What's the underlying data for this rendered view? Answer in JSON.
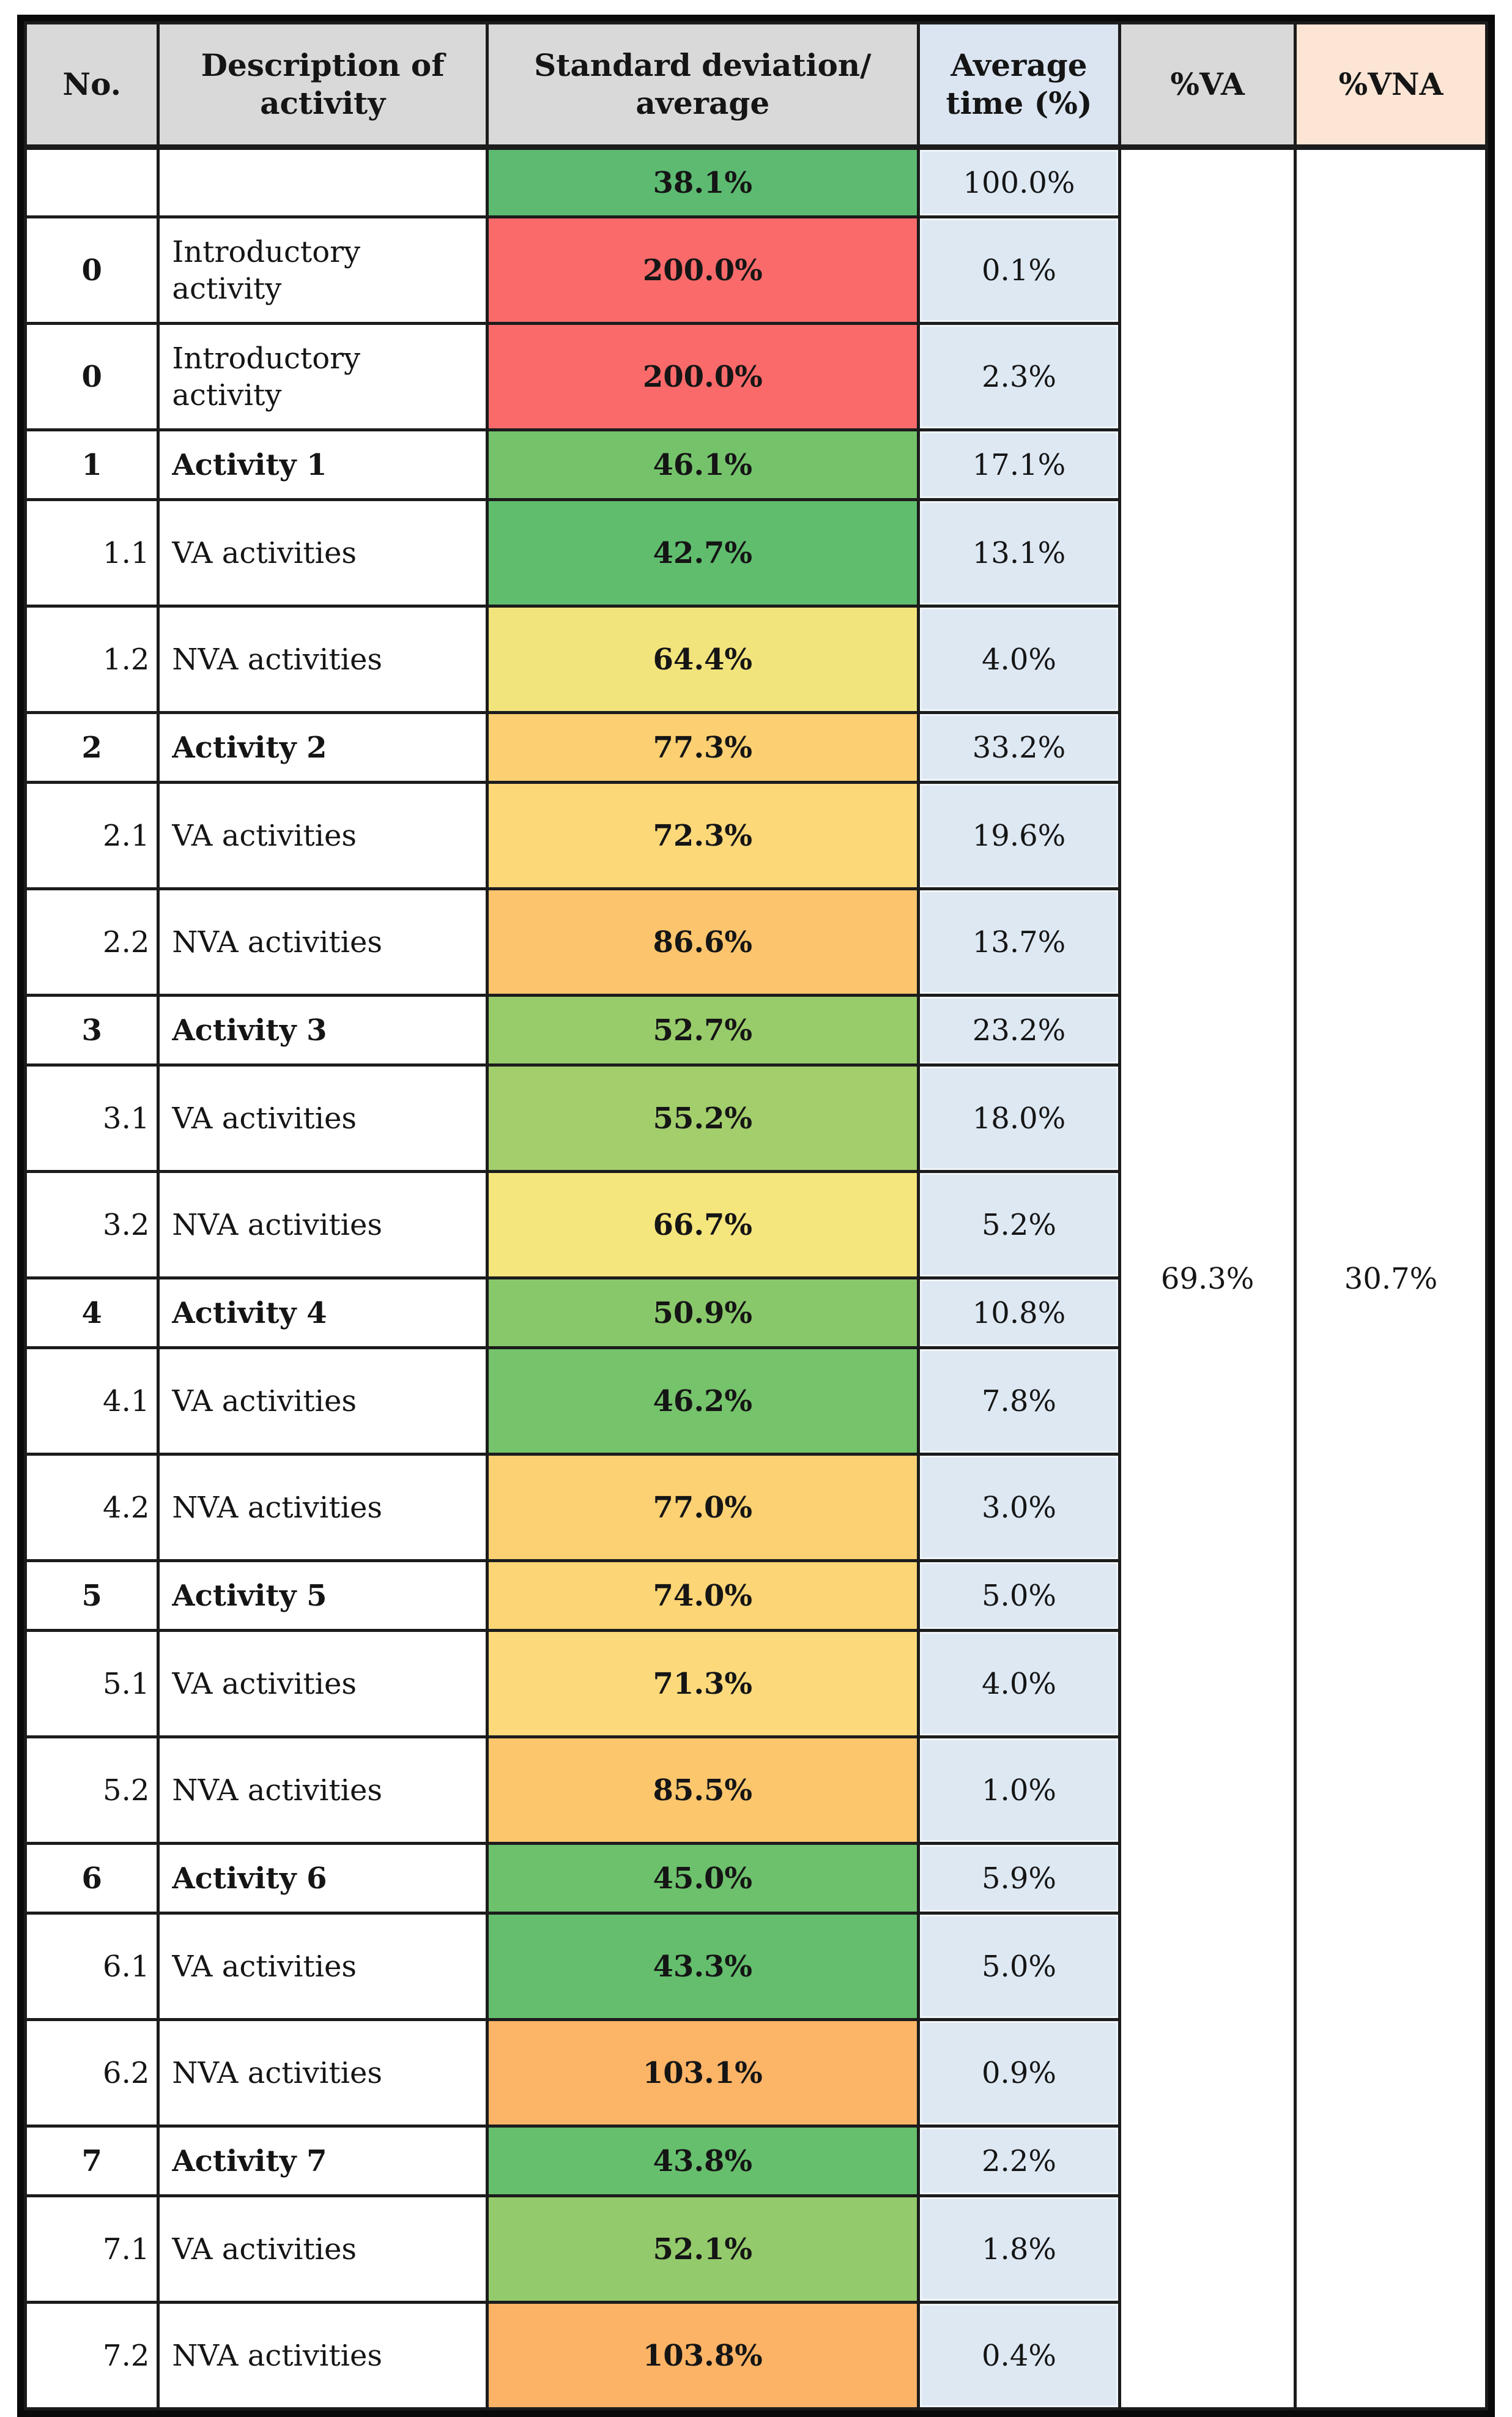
{
  "chart_data": {
    "type": "table",
    "columns": [
      "No.",
      "Description of activity",
      "Standard deviation/ average",
      "Average time (%)",
      "%VA",
      "%VNA"
    ],
    "va_total": "69.3%",
    "vna_total": "30.7%",
    "rows": [
      {
        "no": "",
        "description": "",
        "std": "38.1%",
        "std_color": "#5cbb71",
        "avg": "100.0%",
        "level": "summary"
      },
      {
        "no": "0",
        "description": "Introductory activity",
        "std": "200.0%",
        "std_color": "#fa6a6a",
        "avg": "0.1%",
        "level": "intro"
      },
      {
        "no": "0",
        "description": "Introductory activity",
        "std": "200.0%",
        "std_color": "#fa6a6a",
        "avg": "2.3%",
        "level": "intro"
      },
      {
        "no": "1",
        "description": "Activity 1",
        "std": "46.1%",
        "std_color": "#74c36b",
        "avg": "17.1%",
        "level": "parent"
      },
      {
        "no": "1.1",
        "description": "VA activities",
        "std": "42.7%",
        "std_color": "#60bd6e",
        "avg": "13.1%",
        "level": "child"
      },
      {
        "no": "1.2",
        "description": "NVA activities",
        "std": "64.4%",
        "std_color": "#f2e47c",
        "avg": "4.0%",
        "level": "child"
      },
      {
        "no": "2",
        "description": "Activity 2",
        "std": "77.3%",
        "std_color": "#fcd072",
        "avg": "33.2%",
        "level": "parent"
      },
      {
        "no": "2.1",
        "description": "VA activities",
        "std": "72.3%",
        "std_color": "#fcd879",
        "avg": "19.6%",
        "level": "child"
      },
      {
        "no": "2.2",
        "description": "NVA activities",
        "std": "86.6%",
        "std_color": "#fcc46c",
        "avg": "13.7%",
        "level": "child"
      },
      {
        "no": "3",
        "description": "Activity 3",
        "std": "52.7%",
        "std_color": "#98cb6a",
        "avg": "23.2%",
        "level": "parent"
      },
      {
        "no": "3.1",
        "description": "VA activities",
        "std": "55.2%",
        "std_color": "#a3ce6c",
        "avg": "18.0%",
        "level": "child"
      },
      {
        "no": "3.2",
        "description": "NVA activities",
        "std": "66.7%",
        "std_color": "#f5e57d",
        "avg": "5.2%",
        "level": "child"
      },
      {
        "no": "4",
        "description": "Activity 4",
        "std": "50.9%",
        "std_color": "#89c86a",
        "avg": "10.8%",
        "level": "parent"
      },
      {
        "no": "4.1",
        "description": "VA activities",
        "std": "46.2%",
        "std_color": "#75c36b",
        "avg": "7.8%",
        "level": "child"
      },
      {
        "no": "4.2",
        "description": "NVA activities",
        "std": "77.0%",
        "std_color": "#fcd173",
        "avg": "3.0%",
        "level": "child"
      },
      {
        "no": "5",
        "description": "Activity 5",
        "std": "74.0%",
        "std_color": "#fcd576",
        "avg": "5.0%",
        "level": "parent"
      },
      {
        "no": "5.1",
        "description": "VA activities",
        "std": "71.3%",
        "std_color": "#fcda7b",
        "avg": "4.0%",
        "level": "child"
      },
      {
        "no": "5.2",
        "description": "NVA activities",
        "std": "85.5%",
        "std_color": "#fcc66d",
        "avg": "1.0%",
        "level": "child"
      },
      {
        "no": "6",
        "description": "Activity 6",
        "std": "45.0%",
        "std_color": "#6dc16c",
        "avg": "5.9%",
        "level": "parent"
      },
      {
        "no": "6.1",
        "description": "VA activities",
        "std": "43.3%",
        "std_color": "#64be6d",
        "avg": "5.0%",
        "level": "child"
      },
      {
        "no": "6.2",
        "description": "NVA activities",
        "std": "103.1%",
        "std_color": "#fcb466",
        "avg": "0.9%",
        "level": "child"
      },
      {
        "no": "7",
        "description": "Activity 7",
        "std": "43.8%",
        "std_color": "#66bf6d",
        "avg": "2.2%",
        "level": "parent"
      },
      {
        "no": "7.1",
        "description": "VA activities",
        "std": "52.1%",
        "std_color": "#93ca6b",
        "avg": "1.8%",
        "level": "child"
      },
      {
        "no": "7.2",
        "description": "NVA activities",
        "std": "103.8%",
        "std_color": "#fcb365",
        "avg": "0.4%",
        "level": "child"
      }
    ]
  },
  "colors": {
    "header_bg": [
      "#d9d9d9",
      "#d9d9d9",
      "#d9d9d9",
      "#dbe5f1",
      "#d9d9d9",
      "#fce5d5"
    ],
    "avg_cell": "#dde8f3",
    "red": "#fa6a6a",
    "green": "#5cbb71",
    "yellow": "#f2e47c",
    "orange": "#fcb466",
    "border": "#1c1c1c"
  }
}
